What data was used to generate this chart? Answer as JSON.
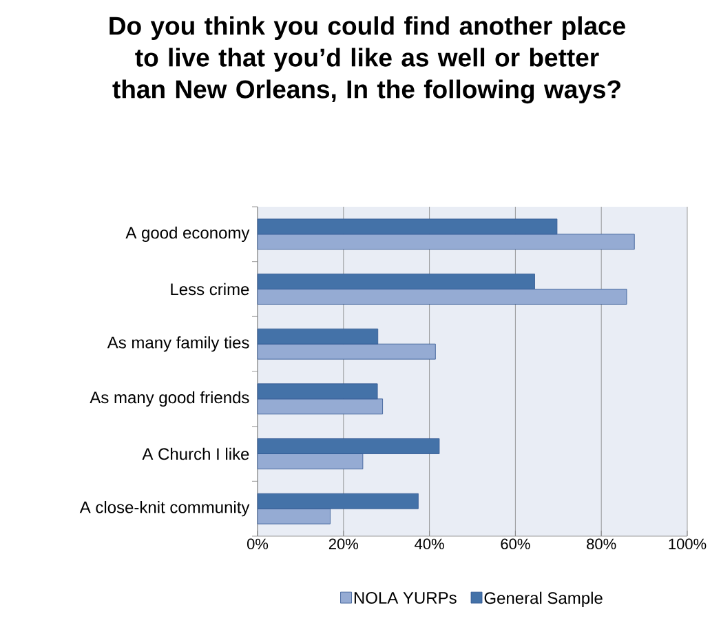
{
  "chart_data": {
    "type": "bar",
    "orientation": "horizontal",
    "title": "Do you think you could find another place to live that you’d like as well or better than New Orleans, In the following ways?",
    "categories": [
      "A good economy",
      "Less crime",
      "As many family ties",
      "As many good friends",
      "A Church I like",
      "A close-knit community"
    ],
    "series": [
      {
        "name": "NOLA YURPs",
        "color": "#95abd3",
        "values": [
          87.7,
          85.9,
          41.4,
          29.1,
          24.5,
          16.9
        ]
      },
      {
        "name": "General Sample",
        "color": "#4472a8",
        "values": [
          69.7,
          64.5,
          28.0,
          27.9,
          42.3,
          37.4
        ]
      }
    ],
    "xlim": [
      0,
      100
    ],
    "xticks": [
      {
        "value": 0,
        "label": "0%"
      },
      {
        "value": 20,
        "label": "20%"
      },
      {
        "value": 40,
        "label": "40%"
      },
      {
        "value": 60,
        "label": "60%"
      },
      {
        "value": 80,
        "label": "80%"
      },
      {
        "value": 100,
        "label": "100%"
      }
    ],
    "grid": "x",
    "legend": "bottom"
  }
}
